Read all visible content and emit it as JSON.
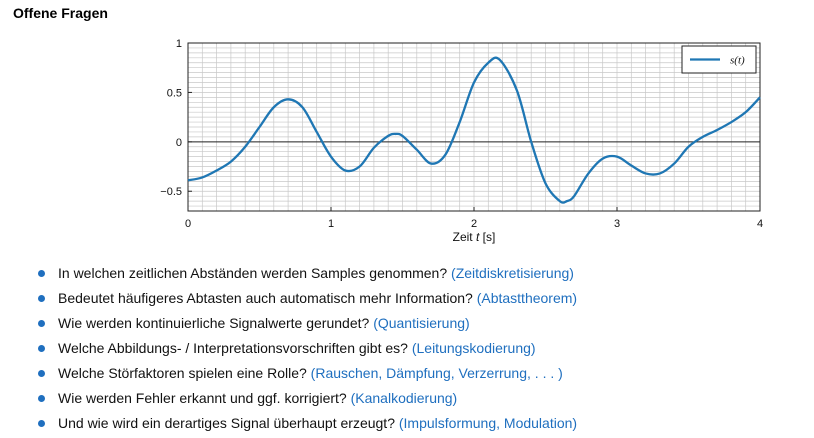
{
  "page": {
    "title": "Offene Fragen"
  },
  "chart_data": {
    "type": "line",
    "xlabel_prefix": "Zeit ",
    "xlabel_var": "t",
    "xlabel_suffix": " [s]",
    "ylabel": "",
    "xlim": [
      0,
      4
    ],
    "ylim": [
      -0.7,
      1
    ],
    "xticks": [
      "0",
      "1",
      "2",
      "3",
      "4"
    ],
    "yticks": [
      {
        "v": 1,
        "label": "1"
      },
      {
        "v": 0.5,
        "label": "0.5"
      },
      {
        "v": 0,
        "label": "0"
      },
      {
        "v": -0.5,
        "label": "−0.5"
      }
    ],
    "grid": true,
    "legend_position": "top-right",
    "series": [
      {
        "name": "s(t)",
        "color": "#1f77b4",
        "x": [
          0,
          0.1,
          0.2,
          0.3,
          0.4,
          0.5,
          0.6,
          0.7,
          0.8,
          0.9,
          1.0,
          1.1,
          1.2,
          1.3,
          1.4,
          1.45,
          1.5,
          1.6,
          1.7,
          1.8,
          1.9,
          2.0,
          2.1,
          2.18,
          2.3,
          2.4,
          2.5,
          2.6,
          2.65,
          2.7,
          2.8,
          2.9,
          3.0,
          3.1,
          3.2,
          3.3,
          3.4,
          3.5,
          3.6,
          3.7,
          3.8,
          3.9,
          4.0
        ],
        "values": [
          -0.39,
          -0.36,
          -0.29,
          -0.2,
          -0.05,
          0.15,
          0.35,
          0.43,
          0.35,
          0.1,
          -0.15,
          -0.29,
          -0.25,
          -0.06,
          0.06,
          0.08,
          0.06,
          -0.08,
          -0.22,
          -0.13,
          0.2,
          0.6,
          0.8,
          0.83,
          0.52,
          0.0,
          -0.42,
          -0.6,
          -0.6,
          -0.55,
          -0.32,
          -0.17,
          -0.15,
          -0.24,
          -0.32,
          -0.32,
          -0.22,
          -0.05,
          0.05,
          0.12,
          0.2,
          0.3,
          0.45
        ]
      }
    ]
  },
  "questions": [
    {
      "text": "In welchen zeitlichen Abständen werden Samples genommen?",
      "hint": "(Zeitdiskretisierung)"
    },
    {
      "text": "Bedeutet häufigeres Abtasten auch automatisch mehr Information?",
      "hint": "(Abtasttheorem)"
    },
    {
      "text": "Wie werden kontinuierliche Signalwerte gerundet?",
      "hint": "(Quantisierung)"
    },
    {
      "text": "Welche Abbildungs- / Interpretationsvorschriften gibt es?",
      "hint": "(Leitungskodierung)"
    },
    {
      "text": "Welche Störfaktoren spielen eine Rolle?",
      "hint": "(Rauschen, Dämpfung, Verzerrung, . . . )"
    },
    {
      "text": "Wie werden Fehler erkannt und ggf. korrigiert?",
      "hint": "(Kanalkodierung)"
    },
    {
      "text": "Und wie wird ein derartiges Signal überhaupt erzeugt?",
      "hint": "(Impulsformung, Modulation)"
    }
  ]
}
